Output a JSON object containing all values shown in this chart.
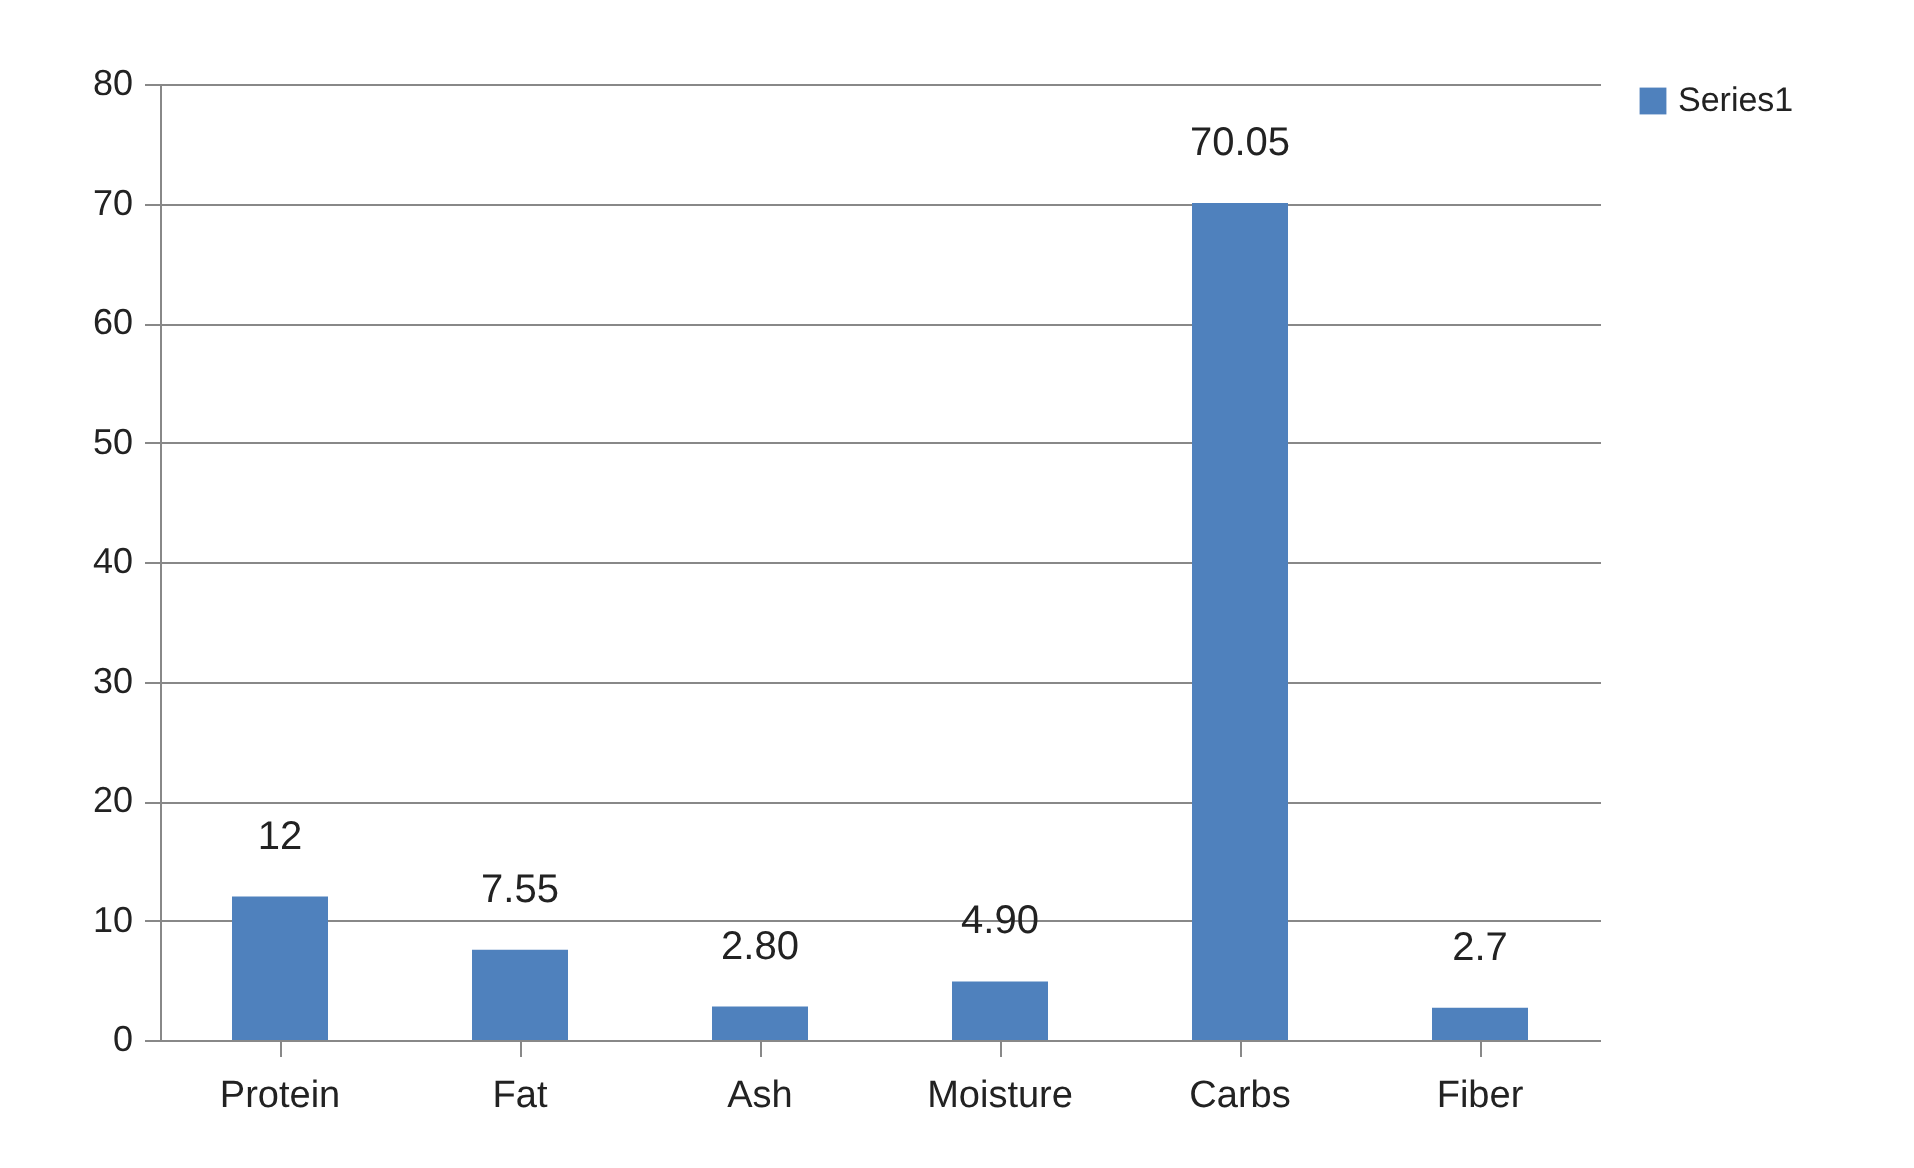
{
  "chart_data": {
    "type": "bar",
    "categories": [
      "Protein",
      "Fat",
      "Ash",
      "Moisture",
      "Carbs",
      "Fiber"
    ],
    "series": [
      {
        "name": "Series1",
        "color": "#4f81bd",
        "values": [
          12,
          7.55,
          2.8,
          4.9,
          70.05,
          2.7
        ],
        "value_labels": [
          "12",
          "7.55",
          "2.80",
          "4.90",
          "70.05",
          "2.7"
        ]
      }
    ],
    "ylim": [
      0,
      80
    ],
    "yticks": [
      0,
      10,
      20,
      30,
      40,
      50,
      60,
      70,
      80
    ],
    "grid": "y",
    "legend": "right"
  }
}
